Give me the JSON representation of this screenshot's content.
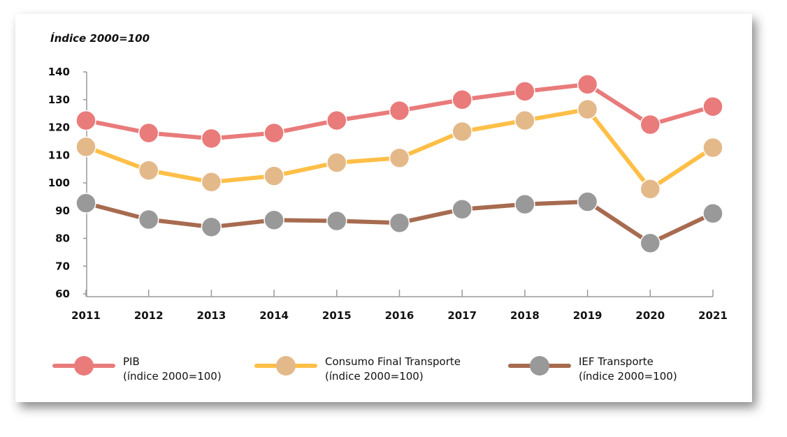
{
  "chart_data": {
    "type": "line",
    "ylabel": "Índice 2000=100",
    "ylim": [
      60,
      140
    ],
    "yticks": [
      "60",
      "70",
      "80",
      "90",
      "100",
      "110",
      "120",
      "130",
      "140"
    ],
    "categories": [
      "2011",
      "2012",
      "2013",
      "2014",
      "2015",
      "2016",
      "2017",
      "2018",
      "2019",
      "2020",
      "2021"
    ],
    "series": [
      {
        "name": "PIB",
        "sub": "(índice 2000=100)",
        "line_color": "#e97b7b",
        "marker_color": "#e97b7b",
        "values": [
          122.5,
          118,
          116,
          118,
          122.5,
          126,
          130,
          133,
          135.5,
          121,
          127.5
        ]
      },
      {
        "name": "Consumo Final Transporte",
        "sub": "(índice 2000=100)",
        "line_color": "#ffbf47",
        "marker_color": "#e4b98a",
        "values": [
          113,
          104.5,
          100.3,
          102.5,
          107.3,
          109,
          118.5,
          122.5,
          126.5,
          97.8,
          112.7
        ]
      },
      {
        "name": "IEF Transporte",
        "sub": "(índice 2000=100)",
        "line_color": "#a76b50",
        "marker_color": "#999999",
        "values": [
          92.7,
          86.8,
          84.1,
          86.6,
          86.3,
          85.6,
          90.5,
          92.3,
          93.2,
          78.3,
          89
        ]
      }
    ],
    "legend": "bottom",
    "grid": false
  }
}
